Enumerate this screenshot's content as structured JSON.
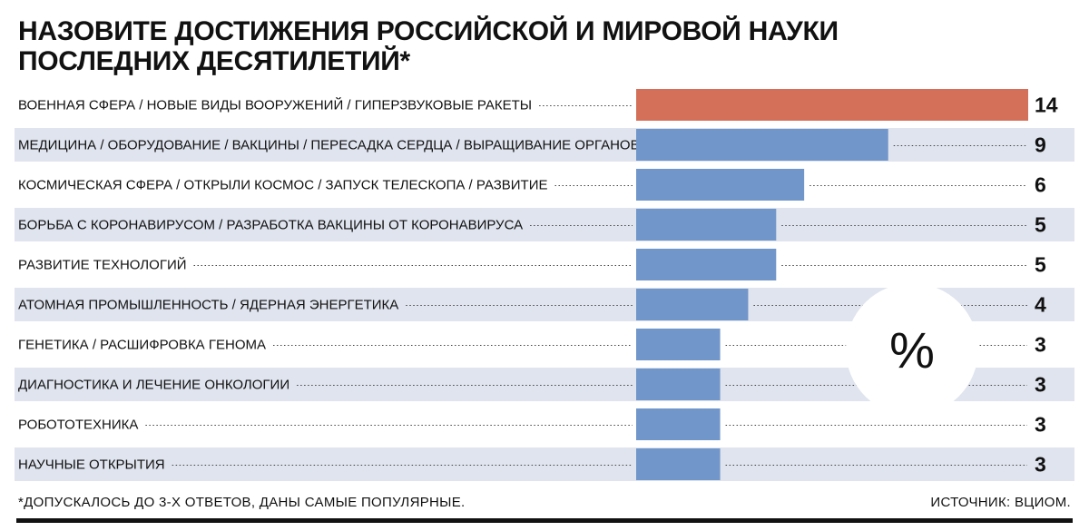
{
  "title": "НАЗОВИТЕ ДОСТИЖЕНИЯ РОССИЙСКОЙ И МИРОВОЙ НАУКИ ПОСЛЕДНИХ ДЕСЯТИЛЕТИЙ*",
  "footnote": "*ДОПУСКАЛОСЬ ДО 3-Х ОТВЕТОВ, ДАНЫ САМЫЕ ПОПУЛЯРНЫЕ.",
  "source": "ИСТОЧНИК: ВЦИОМ.",
  "unit_symbol": "%",
  "colors": {
    "highlight": "#d4705a",
    "bar": "#7196c9",
    "stripe": "#dfe4ee",
    "text": "#111111"
  },
  "chart_data": {
    "type": "bar",
    "orientation": "horizontal",
    "title": "НАЗОВИТЕ ДОСТИЖЕНИЯ РОССИЙСКОЙ И МИРОВОЙ НАУКИ ПОСЛЕДНИХ ДЕСЯТИЛЕТИЙ*",
    "unit": "%",
    "xlim": [
      0,
      14
    ],
    "categories": [
      "ВОЕННАЯ СФЕРА / НОВЫЕ ВИДЫ ВООРУЖЕНИЙ / ГИПЕРЗВУКОВЫЕ РАКЕТЫ",
      "МЕДИЦИНА / ОБОРУДОВАНИЕ / ВАКЦИНЫ / ПЕРЕСАДКА СЕРДЦА / ВЫРАЩИВАНИЕ ОРГАНОВ",
      "КОСМИЧЕСКАЯ СФЕРА / ОТКРЫЛИ КОСМОС / ЗАПУСК ТЕЛЕСКОПА / РАЗВИТИЕ",
      "БОРЬБА С КОРОНАВИРУСОМ / РАЗРАБОТКА ВАКЦИНЫ ОТ КОРОНАВИРУСА",
      "РАЗВИТИЕ ТЕХНОЛОГИЙ",
      "АТОМНАЯ ПРОМЫШЛЕННОСТЬ / ЯДЕРНАЯ ЭНЕРГЕТИКА",
      "ГЕНЕТИКА / РАСШИФРОВКА ГЕНОМА",
      "ДИАГНОСТИКА И ЛЕЧЕНИЕ ОНКОЛОГИИ",
      "РОБОТОТЕХНИКА",
      "НАУЧНЫЕ ОТКРЫТИЯ"
    ],
    "values": [
      14,
      9,
      6,
      5,
      5,
      4,
      3,
      3,
      3,
      3
    ],
    "highlight_index": 0
  }
}
